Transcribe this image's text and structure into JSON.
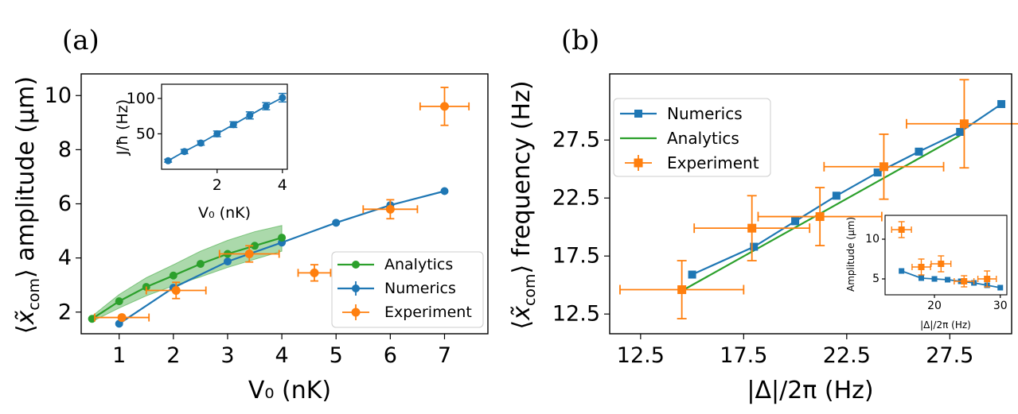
{
  "colors": {
    "analytics": "#2ca02c",
    "numerics": "#1f77b4",
    "experiment": "#ff7f0e",
    "band": "#2ca02c"
  },
  "panel_a": {
    "label": "(a)",
    "legend": [
      "Analytics",
      "Numerics",
      "Experiment"
    ],
    "xticks": [
      "1",
      "2",
      "3",
      "4",
      "5",
      "6",
      "7"
    ],
    "yticks": [
      "2",
      "4",
      "6",
      "8",
      "10"
    ],
    "xlabel": "V₀ (nK)",
    "ylabel_pre": "⟨",
    "ylabel_x": "x̃",
    "ylabel_sub": "com",
    "ylabel_post": "⟩ amplitude (μm)",
    "inset": {
      "xticks": [
        "2",
        "4"
      ],
      "yticks": [
        "50",
        "100"
      ],
      "xlabel": "V₀ (nK)",
      "ylabel": "J/ħ (Hz)"
    }
  },
  "panel_b": {
    "label": "(b)",
    "legend": [
      "Numerics",
      "Analytics",
      "Experiment"
    ],
    "xticks": [
      "12.5",
      "17.5",
      "22.5",
      "27.5"
    ],
    "yticks": [
      "12.5",
      "17.5",
      "22.5",
      "27.5"
    ],
    "xlabel": "|Δ|/2π (Hz)",
    "ylabel_pre": "⟨",
    "ylabel_x": "x̃",
    "ylabel_sub": "com",
    "ylabel_post": "⟩ frequency (Hz)",
    "inset": {
      "xticks": [
        "20",
        "30"
      ],
      "yticks": [
        "5",
        "10"
      ],
      "xlabel": "|Δ|/2π (Hz)",
      "ylabel": "Amplitude (μm)"
    }
  },
  "chart_data": [
    {
      "type": "line",
      "panel": "a",
      "title": "",
      "xlabel": "V₀ (nK)",
      "ylabel": "⟨x̃_com⟩ amplitude (μm)",
      "xlim": [
        0.3,
        7.8
      ],
      "ylim": [
        1.2,
        10.8
      ],
      "series": [
        {
          "name": "Analytics",
          "x": [
            0.5,
            1.0,
            1.5,
            2.0,
            2.5,
            3.0,
            3.5,
            4.0
          ],
          "y": [
            1.75,
            2.4,
            2.93,
            3.35,
            3.78,
            4.15,
            4.45,
            4.75
          ]
        },
        {
          "name": "Analytics band",
          "x": [
            0.5,
            1.0,
            1.5,
            2.0,
            2.5,
            3.0,
            3.5,
            4.0
          ],
          "y_low": [
            1.65,
            2.15,
            2.6,
            2.97,
            3.3,
            3.65,
            3.95,
            4.25
          ],
          "y_high": [
            1.85,
            2.65,
            3.27,
            3.75,
            4.25,
            4.65,
            4.97,
            5.2
          ]
        },
        {
          "name": "Numerics",
          "x": [
            1.0,
            2.0,
            3.0,
            4.0,
            5.0,
            6.0,
            7.0
          ],
          "y": [
            1.57,
            2.9,
            3.87,
            4.57,
            5.3,
            5.95,
            6.47
          ]
        },
        {
          "name": "Experiment",
          "x": [
            1.05,
            2.05,
            3.4,
            4.6,
            6.0,
            7.0
          ],
          "y": [
            1.8,
            2.8,
            4.15,
            3.45,
            5.8,
            9.6
          ],
          "xerr": [
            0.5,
            0.55,
            0.55,
            0.3,
            0.5,
            0.45
          ],
          "yerr": [
            0.0,
            0.3,
            0.3,
            0.3,
            0.35,
            0.7
          ]
        }
      ]
    },
    {
      "type": "line",
      "panel": "a-inset",
      "xlabel": "V₀ (nK)",
      "ylabel": "J/ħ (Hz)",
      "xlim": [
        0.3,
        4.15
      ],
      "ylim": [
        0,
        120
      ],
      "series": [
        {
          "name": "Numerics",
          "x": [
            0.5,
            1.0,
            1.5,
            2.0,
            2.5,
            3.0,
            3.5,
            4.0
          ],
          "y": [
            12,
            25,
            37,
            50,
            63,
            76,
            89,
            101
          ],
          "yerr": [
            2,
            3,
            3,
            4,
            4,
            5,
            5,
            6
          ]
        }
      ]
    },
    {
      "type": "line",
      "panel": "b",
      "xlabel": "|Δ|/2π (Hz)",
      "ylabel": "⟨x̃_com⟩ frequency (Hz)",
      "xlim": [
        11.0,
        30.5
      ],
      "ylim": [
        10.8,
        33.2
      ],
      "series": [
        {
          "name": "Numerics",
          "x": [
            15.0,
            18.0,
            20.0,
            22.0,
            24.0,
            26.0,
            28.0,
            30.0
          ],
          "y": [
            15.9,
            18.3,
            20.5,
            22.7,
            24.7,
            26.5,
            28.2,
            30.6
          ]
        },
        {
          "name": "Analytics",
          "x": [
            14.5,
            28.0
          ],
          "y": [
            14.5,
            27.9
          ]
        },
        {
          "name": "Experiment",
          "x": [
            14.5,
            17.9,
            21.2,
            24.3,
            28.2
          ],
          "y": [
            14.6,
            19.9,
            20.9,
            25.2,
            28.9
          ],
          "xerr": [
            3.0,
            2.8,
            3.0,
            2.9,
            2.8
          ],
          "yerr": [
            2.5,
            2.8,
            2.5,
            2.8,
            3.8
          ]
        }
      ]
    },
    {
      "type": "line",
      "panel": "b-inset",
      "xlabel": "|Δ|/2π (Hz)",
      "ylabel": "Amplitude (μm)",
      "xlim": [
        12.5,
        31
      ],
      "ylim": [
        3,
        13
      ],
      "series": [
        {
          "name": "Numerics",
          "x": [
            15,
            18,
            20,
            22,
            24,
            26,
            28,
            30
          ],
          "y": [
            6.0,
            5.1,
            5.0,
            4.9,
            4.7,
            4.5,
            4.2,
            3.9
          ]
        },
        {
          "name": "Experiment",
          "x": [
            15,
            18,
            21,
            24.5,
            28
          ],
          "y": [
            11.2,
            6.5,
            6.9,
            4.7,
            5.0
          ],
          "xerr": [
            1.5,
            1.4,
            1.5,
            1.5,
            1.4
          ],
          "yerr": [
            1.0,
            1.0,
            1.0,
            0.7,
            1.0
          ]
        }
      ]
    }
  ]
}
